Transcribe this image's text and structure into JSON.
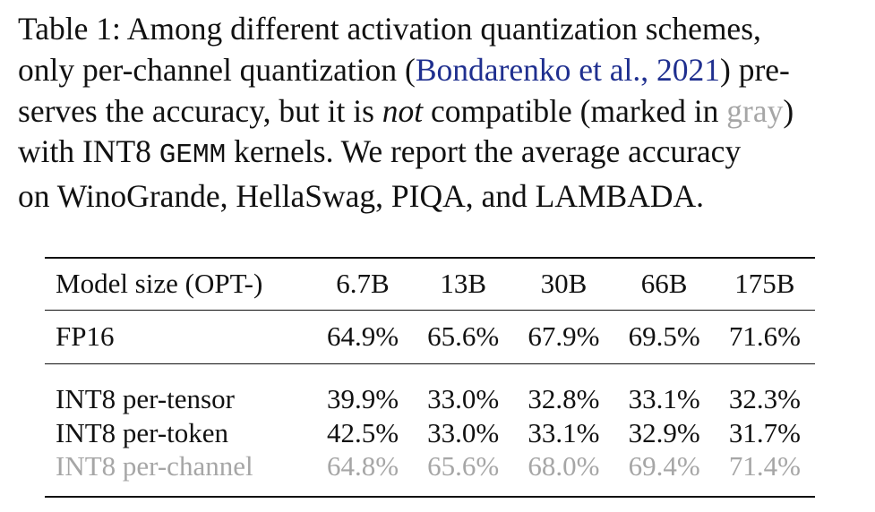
{
  "caption": {
    "line1": "Table 1: Among different activation quantization schemes,",
    "line2_pre": "only per-channel quantization (",
    "line2_cite": "Bondarenko et al., 2021",
    "line2_post": ") pre-",
    "line3_pre": "serves the accuracy, but it is ",
    "line3_em": "not",
    "line3_mid": " compatible (marked in ",
    "line3_gray": "gray",
    "line3_post": ")",
    "line4_pre": "with INT8 ",
    "line4_mono": "GEMM",
    "line4_post": " kernels.  We report the average accuracy",
    "line5": "on WinoGrande, HellaSwag, PIQA, and LAMBADA."
  },
  "table": {
    "header": [
      "Model size (OPT-)",
      "6.7B",
      "13B",
      "30B",
      "66B",
      "175B"
    ],
    "rows": [
      {
        "label": "FP16",
        "values": [
          "64.9%",
          "65.6%",
          "67.9%",
          "69.5%",
          "71.6%"
        ]
      },
      {
        "label": "INT8 per-tensor",
        "values": [
          "39.9%",
          "33.0%",
          "32.8%",
          "33.1%",
          "32.3%"
        ]
      },
      {
        "label": "INT8 per-token",
        "values": [
          "42.5%",
          "33.0%",
          "33.1%",
          "32.9%",
          "31.7%"
        ]
      },
      {
        "label": "INT8 per-channel",
        "values": [
          "64.8%",
          "65.6%",
          "68.0%",
          "69.4%",
          "71.4%"
        ]
      }
    ]
  },
  "colors": {
    "text": "#111111",
    "citation": "#1f2f8f",
    "gray": "#a6a6a6"
  }
}
